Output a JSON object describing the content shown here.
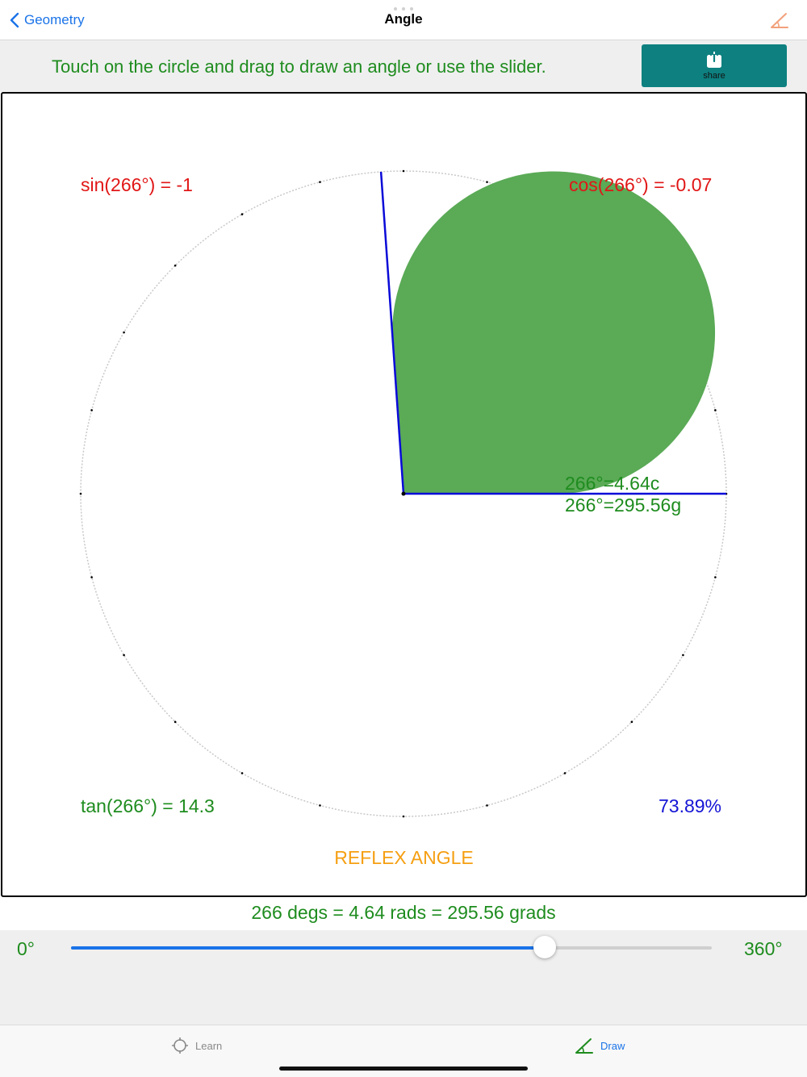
{
  "nav": {
    "back_label": "Geometry",
    "title": "Angle",
    "right_icon": "angle-icon"
  },
  "instruction": {
    "text": "Touch on the circle and drag to draw an angle or use the slider.",
    "share_label": "share",
    "share_icon": "share-icon"
  },
  "angle": {
    "degrees": 266,
    "sin_text": "sin(266°) = -1",
    "cos_text": "cos(266°) = -0.07",
    "tan_text": "tan(266°) = 14.3",
    "percent_text": "73.89%",
    "radians_text": "266°=4.64c",
    "grads_text": "266°=295.56g",
    "type_text": "REFLEX ANGLE"
  },
  "summary": "266 degs = 4.64 rads = 295.56 grads",
  "slider": {
    "min_label": "0°",
    "max_label": "360°",
    "min": 0,
    "max": 360,
    "value": 266
  },
  "tabs": [
    {
      "label": "Learn",
      "icon": "crosshair-icon",
      "active": false
    },
    {
      "label": "Draw",
      "icon": "angle-icon",
      "active": true
    }
  ],
  "colors": {
    "sector": "#5aaa56",
    "arms": "#0a0ad8",
    "accent": "#1a73e8",
    "share_button": "#0e8080",
    "trig_text": "#e11616",
    "info_text": "#1e8c1e",
    "angle_type": "#f59f12"
  }
}
